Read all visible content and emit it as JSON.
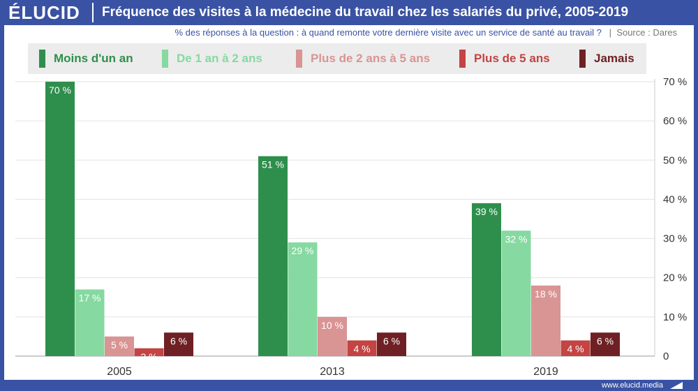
{
  "header": {
    "brand": "ÉLUCID",
    "title": "Fréquence des visites à la médecine du travail chez les salariés du privé, 2005-2019"
  },
  "subtitle": {
    "question": "% des réponses à la question : à quand remonte votre dernière visite avec un service de santé au travail ?",
    "separator": "|",
    "source": "Source : Dares"
  },
  "footer": {
    "site": "www.elucid.media"
  },
  "colors": {
    "brand_blue": "#3a52a3",
    "moins_un_an": "#2e8f4c",
    "un_a_deux": "#86d9a1",
    "deux_a_cinq": "#d99494",
    "plus_de_cinq": "#c44343",
    "jamais": "#6e2024"
  },
  "chart_data": {
    "type": "bar",
    "title": "Fréquence des visites à la médecine du travail chez les salariés du privé, 2005-2019",
    "categories": [
      "2005",
      "2013",
      "2019"
    ],
    "series": [
      {
        "name": "Moins d'un an",
        "color": "#2e8f4c",
        "values": [
          70,
          51,
          39
        ],
        "labels": [
          "70 %",
          "51 %",
          "39 %"
        ]
      },
      {
        "name": "De 1 an à 2 ans",
        "color": "#86d9a1",
        "values": [
          17,
          29,
          32
        ],
        "labels": [
          "17 %",
          "29 %",
          "32 %"
        ]
      },
      {
        "name": "Plus de 2 ans à 5 ans",
        "color": "#d99494",
        "values": [
          5,
          10,
          18
        ],
        "labels": [
          "5 %",
          "10 %",
          "18 %"
        ]
      },
      {
        "name": "Plus de 5 ans",
        "color": "#c44343",
        "values": [
          2,
          4,
          4
        ],
        "labels": [
          "2 %",
          "4 %",
          "4 %"
        ]
      },
      {
        "name": "Jamais",
        "color": "#6e2024",
        "values": [
          6,
          6,
          6
        ],
        "labels": [
          "6 %",
          "6 %",
          "6 %"
        ]
      }
    ],
    "ylim": [
      0,
      70
    ],
    "yticks": [
      0,
      10,
      20,
      30,
      40,
      50,
      60,
      70
    ],
    "ytick_labels": [
      "0",
      "10 %",
      "20 %",
      "30 %",
      "40 %",
      "50 %",
      "60 %",
      "70 %"
    ],
    "y_axis_side": "right",
    "grid": true,
    "legend_position": "top"
  }
}
